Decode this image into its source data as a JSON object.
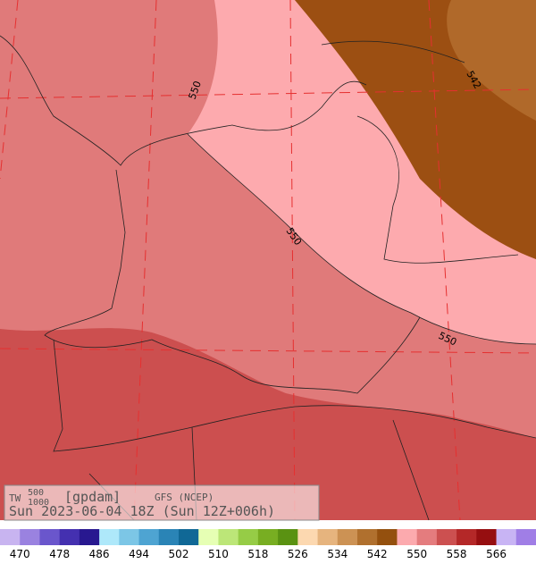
{
  "header": {
    "title": "TW",
    "title_sup": "500",
    "title_sub": "1000",
    "unit": "[gpdam]",
    "model": "GFS (NCEP)",
    "valid": "Sun 2023-06-04 18Z (Sun 12Z+006h)"
  },
  "contour_labels": [
    "550",
    "550",
    "550",
    "542"
  ],
  "colorbar": {
    "labels": [
      470,
      478,
      486,
      494,
      502,
      510,
      518,
      526,
      534,
      542,
      550,
      558,
      566
    ],
    "colors": [
      "#c8b4f0",
      "#9a82e0",
      "#6a56cc",
      "#4430b0",
      "#281890",
      "#aee8fa",
      "#7cc6e6",
      "#4ea4d2",
      "#2a84b6",
      "#106896",
      "#e6ffb4",
      "#bce678",
      "#96cc46",
      "#78ae22",
      "#5a9212",
      "#fcd8b0",
      "#e6b47e",
      "#cc9254",
      "#b0702e",
      "#94500e",
      "#fcaaae",
      "#e47c7e",
      "#cc5050",
      "#b42828",
      "#960e10",
      "#c8b4f4",
      "#a07ee6"
    ]
  }
}
